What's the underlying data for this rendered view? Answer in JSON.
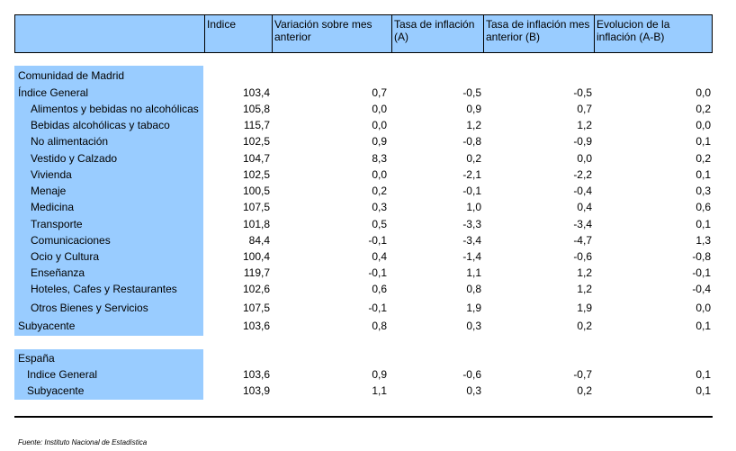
{
  "header": {
    "col1": "",
    "col2": "Indice",
    "col3": "Variación sobre mes anterior",
    "col4": "Tasa de inflación (A)",
    "col5": "Tasa de inflación mes anterior (B)",
    "col6": "Evolucion de la inflación (A-B)"
  },
  "madrid": {
    "section_title": "Comunidad de Madrid",
    "rows": [
      {
        "label": "Índice General",
        "indice": "103,4",
        "variacion": "0,7",
        "tasa_a": "-0,5",
        "tasa_b": "-0,5",
        "evolucion": "0,0"
      },
      {
        "label": "Alimentos y bebidas no alcohólicas",
        "indice": "105,8",
        "variacion": "0,0",
        "tasa_a": "0,9",
        "tasa_b": "0,7",
        "evolucion": "0,2"
      },
      {
        "label": "Bebidas alcohólicas y tabaco",
        "indice": "115,7",
        "variacion": "0,0",
        "tasa_a": "1,2",
        "tasa_b": "1,2",
        "evolucion": "0,0"
      },
      {
        "label": "No alimentación",
        "indice": "102,5",
        "variacion": "0,9",
        "tasa_a": "-0,8",
        "tasa_b": "-0,9",
        "evolucion": "0,1"
      },
      {
        "label": "Vestido y Calzado",
        "indice": "104,7",
        "variacion": "8,3",
        "tasa_a": "0,2",
        "tasa_b": "0,0",
        "evolucion": "0,2"
      },
      {
        "label": "Vivienda",
        "indice": "102,5",
        "variacion": "0,0",
        "tasa_a": "-2,1",
        "tasa_b": "-2,2",
        "evolucion": "0,1"
      },
      {
        "label": "Menaje",
        "indice": "100,5",
        "variacion": "0,2",
        "tasa_a": "-0,1",
        "tasa_b": "-0,4",
        "evolucion": "0,3"
      },
      {
        "label": "Medicina",
        "indice": "107,5",
        "variacion": "0,3",
        "tasa_a": "1,0",
        "tasa_b": "0,4",
        "evolucion": "0,6"
      },
      {
        "label": "Transporte",
        "indice": "101,8",
        "variacion": "0,5",
        "tasa_a": "-3,3",
        "tasa_b": "-3,4",
        "evolucion": "0,1"
      },
      {
        "label": "Comunicaciones",
        "indice": "84,4",
        "variacion": "-0,1",
        "tasa_a": "-3,4",
        "tasa_b": "-4,7",
        "evolucion": "1,3"
      },
      {
        "label": "Ocio y Cultura",
        "indice": "100,4",
        "variacion": "0,4",
        "tasa_a": "-1,4",
        "tasa_b": "-0,6",
        "evolucion": "-0,8"
      },
      {
        "label": "Enseñanza",
        "indice": "119,7",
        "variacion": "-0,1",
        "tasa_a": "1,1",
        "tasa_b": "1,2",
        "evolucion": "-0,1"
      },
      {
        "label": "Hoteles, Cafes y Restaurantes",
        "indice": "102,6",
        "variacion": "0,6",
        "tasa_a": "0,8",
        "tasa_b": "1,2",
        "evolucion": "-0,4"
      },
      {
        "label": "Otros Bienes y Servicios",
        "indice": "107,5",
        "variacion": "-0,1",
        "tasa_a": "1,9",
        "tasa_b": "1,9",
        "evolucion": "0,0"
      },
      {
        "label": "Subyacente",
        "indice": "103,6",
        "variacion": "0,8",
        "tasa_a": "0,3",
        "tasa_b": "0,2",
        "evolucion": "0,1"
      }
    ]
  },
  "espana": {
    "section_title": "España",
    "rows": [
      {
        "label": "Indice General",
        "indice": "103,6",
        "variacion": "0,9",
        "tasa_a": "-0,6",
        "tasa_b": "-0,7",
        "evolucion": "0,1"
      },
      {
        "label": "Subyacente",
        "indice": "103,9",
        "variacion": "1,1",
        "tasa_a": "0,3",
        "tasa_b": "0,2",
        "evolucion": "0,1"
      }
    ]
  },
  "footer": {
    "source": "Fuente: Instituto Nacional de Estadística"
  }
}
